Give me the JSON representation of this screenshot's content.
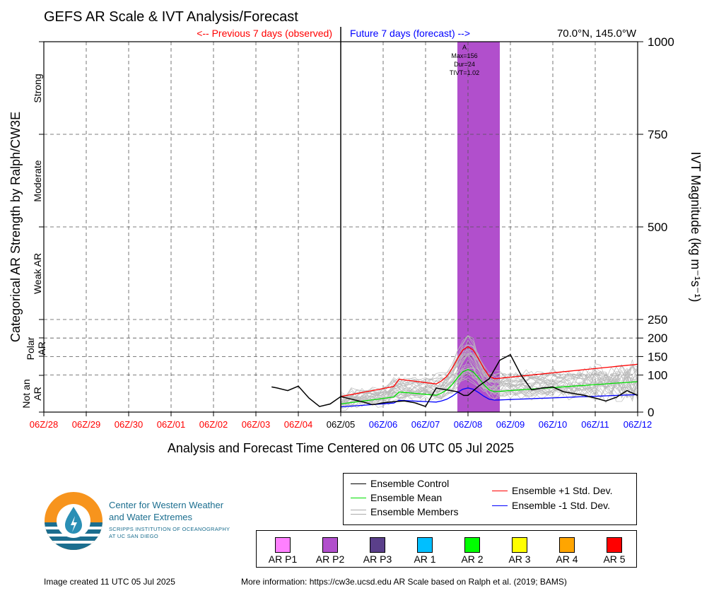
{
  "header": {
    "title": "GEFS AR Scale & IVT Analysis/Forecast",
    "prev_label": "<-- Previous 7 days (observed)",
    "future_label": "Future 7 days (forecast) -->",
    "location": "70.0°N, 145.0°W"
  },
  "axes": {
    "x_title": "Analysis and Forecast Time Centered on 06 UTC 05 Jul 2025",
    "left_title": "Categorical AR Strength by Ralph/CW3E",
    "right_title": "IVT Magnitude (kg m⁻¹s⁻¹)",
    "categories": [
      "Strong",
      "Moderate",
      "Weak AR",
      "Polar AR",
      "Not an AR"
    ]
  },
  "annotation": {
    "line1": "A",
    "line2": "Max=156",
    "line3": "Dur=24",
    "line4": "TIVT=1.02"
  },
  "legend": {
    "control": "Ensemble Control",
    "mean": "Ensemble Mean",
    "members": "Ensemble Members",
    "plus_std": "Ensemble +1 Std. Dev.",
    "minus_std": "Ensemble -1 Std. Dev."
  },
  "ar_scale": {
    "items": [
      {
        "label": "AR P1",
        "color": "#ff80ff"
      },
      {
        "label": "AR P2",
        "color": "#b14fcc"
      },
      {
        "label": "AR P3",
        "color": "#5a3f8a"
      },
      {
        "label": "AR 1",
        "color": "#00bfff"
      },
      {
        "label": "AR 2",
        "color": "#00ff00"
      },
      {
        "label": "AR 3",
        "color": "#ffff00"
      },
      {
        "label": "AR 4",
        "color": "#ffa500"
      },
      {
        "label": "AR 5",
        "color": "#ff0000"
      }
    ]
  },
  "logo": {
    "line1": "Center for Western Weather",
    "line2": "and Water Extremes",
    "line3": "SCRIPPS INSTITUTION OF OCEANOGRAPHY",
    "line4": "AT UC SAN DIEGO"
  },
  "footer": {
    "created": "Image created 11 UTC 05 Jul 2025",
    "more": "More information: https://cw3e.ucsd.edu AR Scale based on Ralph et al. (2019; BAMS)"
  },
  "chart_data": {
    "type": "line",
    "x_ticks": [
      "06Z/28",
      "06Z/29",
      "06Z/30",
      "06Z/01",
      "06Z/02",
      "06Z/03",
      "06Z/04",
      "06Z/05",
      "06Z/06",
      "06Z/07",
      "06Z/08",
      "06Z/09",
      "06Z/10",
      "06Z/11",
      "06Z/12"
    ],
    "x_tick_colors": [
      "#ff0000",
      "#ff0000",
      "#ff0000",
      "#ff0000",
      "#ff0000",
      "#ff0000",
      "#ff0000",
      "#000000",
      "#0000ff",
      "#0000ff",
      "#0000ff",
      "#0000ff",
      "#0000ff",
      "#0000ff",
      "#0000ff"
    ],
    "y_ticks": [
      0,
      100,
      150,
      200,
      250,
      500,
      750,
      1000
    ],
    "ylim": [
      0,
      1000
    ],
    "xlim_days": [
      0,
      14
    ],
    "ar_shading": {
      "start_day": 9.75,
      "end_day": 10.75,
      "color": "#b14fcc",
      "category": "AR P2"
    },
    "series": [
      {
        "name": "Ensemble Control",
        "color": "#000000",
        "x": [
          5.37,
          5.5,
          5.75,
          6.0,
          6.25,
          6.5,
          6.75,
          7.0,
          7.25,
          7.5,
          7.75,
          8.0,
          8.25,
          8.5,
          8.75,
          9.0,
          9.25,
          9.5,
          9.75,
          9.9,
          10.0,
          10.15,
          10.25,
          10.5,
          10.75,
          11.0,
          11.25,
          11.5,
          11.75,
          12.0,
          12.25,
          12.5,
          12.75,
          13.0,
          13.25,
          13.5,
          13.75,
          14.0
        ],
        "y": [
          68,
          65,
          58,
          70,
          38,
          15,
          22,
          42,
          35,
          28,
          20,
          25,
          28,
          30,
          25,
          15,
          65,
          60,
          55,
          45,
          45,
          60,
          70,
          90,
          140,
          155,
          100,
          60,
          65,
          68,
          55,
          50,
          45,
          38,
          30,
          40,
          58,
          45
        ]
      }
    ]
  }
}
